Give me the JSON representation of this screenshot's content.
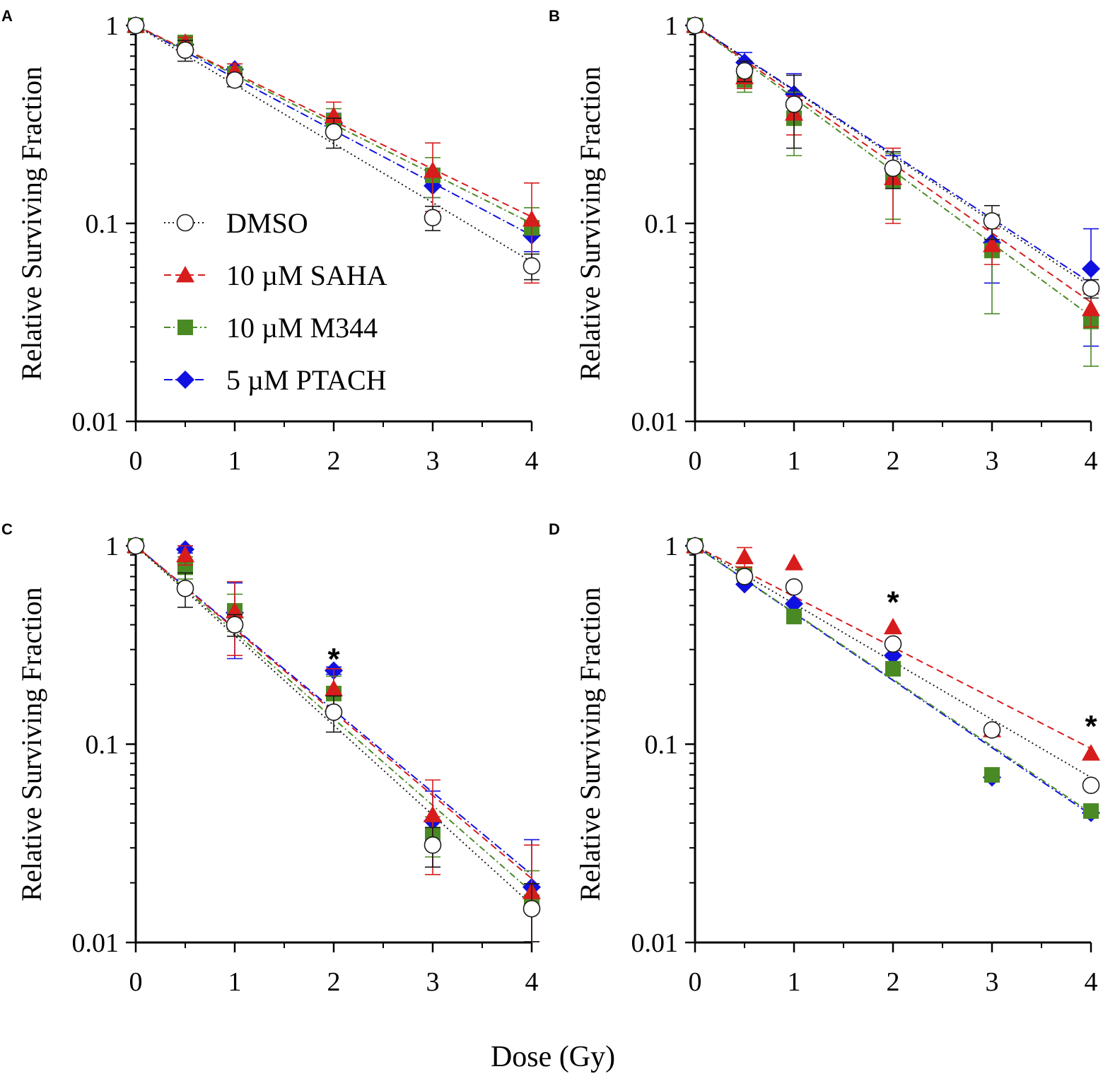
{
  "figure": {
    "common_xlabel": "Dose (Gy)"
  },
  "legend": {
    "placement": "panel A, lower-left",
    "entries": [
      {
        "label": "DMSO",
        "series": "DMSO"
      },
      {
        "label": "10 µM SAHA",
        "series": "SAHA"
      },
      {
        "label": "10 µM M344",
        "series": "M344"
      },
      {
        "label": "5 µM PTACH",
        "series": "PTACH"
      }
    ]
  },
  "styles": {
    "DMSO": {
      "color": "#1a1a1a",
      "marker": "circle-open",
      "dash": "2,4"
    },
    "SAHA": {
      "color": "#d71c1c",
      "marker": "triangle",
      "dash": "10,6"
    },
    "M344": {
      "color": "#4a8a24",
      "marker": "square",
      "dash": "9,4,2,4"
    },
    "PTACH": {
      "color": "#1010e0",
      "marker": "diamond",
      "dash": "12,4,2,4"
    }
  },
  "chart_data": [
    {
      "panel": "A",
      "type": "scatter",
      "ylabel": "Relative Surviving Fraction",
      "xlabel": "",
      "yscale": "log",
      "ylim": [
        0.01,
        1
      ],
      "xlim": [
        0,
        4
      ],
      "xticks": [
        "0",
        "1",
        "2",
        "3",
        "4"
      ],
      "yticks": [
        "0.01",
        "0.1",
        "1"
      ],
      "x": [
        0,
        0.5,
        1,
        2,
        3,
        4
      ],
      "series": [
        {
          "name": "DMSO",
          "values": [
            1,
            0.75,
            0.53,
            0.29,
            0.107,
            0.061
          ],
          "err": [
            0,
            0.09,
            0.04,
            0.05,
            0.015,
            0.009
          ]
        },
        {
          "name": "SAHA",
          "values": [
            1,
            0.82,
            0.59,
            0.35,
            0.185,
            0.105
          ],
          "err": [
            0,
            0.05,
            0.05,
            0.06,
            0.07,
            0.055
          ]
        },
        {
          "name": "M344",
          "values": [
            1,
            0.82,
            0.57,
            0.33,
            0.175,
            0.095
          ],
          "err": [
            0,
            0.04,
            0.04,
            0.05,
            0.04,
            0.025
          ]
        },
        {
          "name": "PTACH",
          "values": [
            1,
            0.8,
            0.6,
            0.32,
            0.155,
            0.087
          ],
          "err": [
            0,
            0.05,
            0.04,
            0.04,
            0.02,
            0.015
          ]
        }
      ],
      "fits": [
        {
          "name": "DMSO",
          "end": 0.064
        },
        {
          "name": "SAHA",
          "end": 0.108
        },
        {
          "name": "M344",
          "end": 0.1
        },
        {
          "name": "PTACH",
          "end": 0.087
        }
      ],
      "annotations": []
    },
    {
      "panel": "B",
      "type": "scatter",
      "ylabel": "Relative Surviving Fraction",
      "xlabel": "",
      "yscale": "log",
      "ylim": [
        0.01,
        1
      ],
      "xlim": [
        0,
        4
      ],
      "xticks": [
        "0",
        "1",
        "2",
        "3",
        "4"
      ],
      "yticks": [
        "0.01",
        "0.1",
        "1"
      ],
      "x": [
        0,
        0.5,
        1,
        2,
        3,
        4
      ],
      "series": [
        {
          "name": "DMSO",
          "values": [
            1,
            0.59,
            0.4,
            0.19,
            0.103,
            0.047
          ],
          "err": [
            0,
            0.07,
            0.16,
            0.04,
            0.02,
            0.005
          ]
        },
        {
          "name": "SAHA",
          "values": [
            1,
            0.55,
            0.36,
            0.17,
            0.078,
            0.037
          ],
          "err": [
            0,
            0.07,
            0.08,
            0.07,
            0.016,
            0.007
          ]
        },
        {
          "name": "M344",
          "values": [
            1,
            0.53,
            0.34,
            0.165,
            0.073,
            0.032
          ],
          "err": [
            0,
            0.07,
            0.12,
            0.06,
            0.038,
            0.013
          ]
        },
        {
          "name": "PTACH",
          "values": [
            1,
            0.65,
            0.45,
            0.19,
            0.08,
            0.059
          ],
          "err": [
            0,
            0.08,
            0.12,
            0.03,
            0.03,
            0.035
          ]
        }
      ],
      "fits": [
        {
          "name": "DMSO",
          "end": 0.048
        },
        {
          "name": "SAHA",
          "end": 0.04
        },
        {
          "name": "M344",
          "end": 0.034
        },
        {
          "name": "PTACH",
          "end": 0.05
        }
      ],
      "annotations": []
    },
    {
      "panel": "C",
      "type": "scatter",
      "ylabel": "Relative Surviving Fraction",
      "xlabel": "",
      "yscale": "log",
      "ylim": [
        0.01,
        1
      ],
      "xlim": [
        0,
        4
      ],
      "xticks": [
        "0",
        "1",
        "2",
        "3",
        "4"
      ],
      "yticks": [
        "0.01",
        "0.1",
        "1"
      ],
      "x": [
        0,
        0.5,
        1,
        2,
        3,
        4
      ],
      "series": [
        {
          "name": "DMSO",
          "values": [
            1,
            0.61,
            0.4,
            0.145,
            0.031,
            0.0148
          ],
          "err": [
            0,
            0.12,
            0.05,
            0.03,
            0.007,
            0.005
          ]
        },
        {
          "name": "SAHA",
          "values": [
            1,
            0.9,
            0.47,
            0.19,
            0.044,
            0.018
          ],
          "err": [
            0,
            0.1,
            0.19,
            0.05,
            0.022,
            0.013
          ]
        },
        {
          "name": "M344",
          "values": [
            1,
            0.78,
            0.47,
            0.18,
            0.035,
            0.016
          ],
          "err": [
            0,
            0.1,
            0.1,
            0.04,
            0.008,
            0.007
          ]
        },
        {
          "name": "PTACH",
          "values": [
            1,
            0.96,
            0.46,
            0.235,
            0.041,
            0.019
          ],
          "err": [
            0,
            0.04,
            0.19,
            0.01,
            0.017,
            0.014
          ]
        }
      ],
      "fits": [
        {
          "name": "DMSO",
          "end": 0.0155
        },
        {
          "name": "SAHA",
          "end": 0.021
        },
        {
          "name": "M344",
          "end": 0.018
        },
        {
          "name": "PTACH",
          "end": 0.022
        }
      ],
      "annotations": [
        {
          "text": "*",
          "x": 2,
          "y": 0.29
        }
      ]
    },
    {
      "panel": "D",
      "type": "scatter",
      "ylabel": "Relative Surviving Fraction",
      "xlabel": "",
      "yscale": "log",
      "ylim": [
        0.01,
        1
      ],
      "xlim": [
        0,
        4
      ],
      "xticks": [
        "0",
        "1",
        "2",
        "3",
        "4"
      ],
      "yticks": [
        "0.01",
        "0.1",
        "1"
      ],
      "x": [
        0,
        0.5,
        1,
        2,
        3,
        4
      ],
      "series": [
        {
          "name": "DMSO",
          "values": [
            1,
            0.7,
            0.62,
            0.32,
            0.118,
            0.062
          ],
          "err": [
            0,
            0,
            0,
            0,
            0,
            0
          ]
        },
        {
          "name": "SAHA",
          "values": [
            1,
            0.88,
            0.82,
            0.39,
            0.118,
            0.09
          ],
          "err": [
            0,
            0.1,
            0,
            0,
            0,
            0
          ]
        },
        {
          "name": "M344",
          "values": [
            1,
            0.72,
            0.44,
            0.24,
            0.07,
            0.046
          ],
          "err": [
            0,
            0,
            0,
            0,
            0,
            0
          ]
        },
        {
          "name": "PTACH",
          "values": [
            1,
            0.64,
            0.51,
            0.28,
            0.068,
            0.045
          ],
          "err": [
            0,
            0,
            0,
            0,
            0,
            0
          ]
        }
      ],
      "fits": [
        {
          "name": "DMSO",
          "end": 0.068
        },
        {
          "name": "SAHA",
          "end": 0.095
        },
        {
          "name": "M344",
          "end": 0.045
        },
        {
          "name": "PTACH",
          "end": 0.044
        }
      ],
      "annotations": [
        {
          "text": "*",
          "x": 2,
          "y": 0.56
        },
        {
          "text": "*",
          "x": 4,
          "y": 0.133
        }
      ]
    }
  ]
}
